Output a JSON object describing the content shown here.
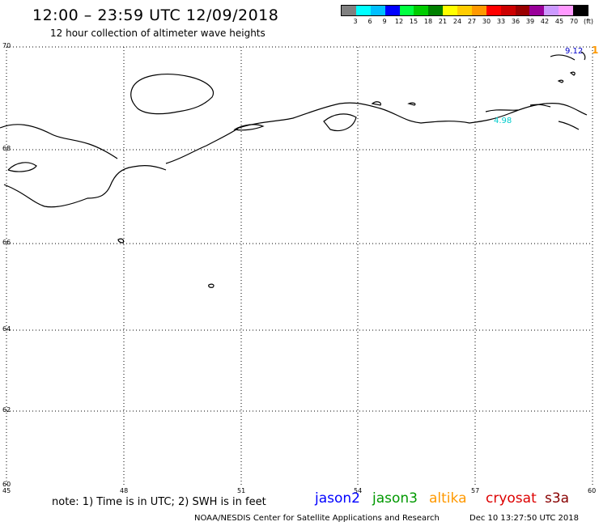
{
  "title": "12:00 – 23:59 UTC 12/09/2018",
  "subtitle": "12 hour collection of altimeter wave heights",
  "scale": {
    "colors": [
      "#808080",
      "#00ffff",
      "#00bfff",
      "#0000ff",
      "#00ff40",
      "#00cc00",
      "#008000",
      "#ffff00",
      "#ffcc00",
      "#ff9900",
      "#ff0000",
      "#cc0000",
      "#990000",
      "#990099",
      "#cc99ff",
      "#ff99ff",
      "#000000"
    ],
    "labels": [
      "3",
      "6",
      "9",
      "12",
      "15",
      "18",
      "21",
      "24",
      "27",
      "30",
      "33",
      "36",
      "39",
      "42",
      "45",
      "70",
      "(ft)"
    ]
  },
  "map": {
    "lat_labels": [
      "70",
      "68",
      "66",
      "64",
      "62",
      "60"
    ],
    "lon_labels": [
      "45",
      "48",
      "51",
      "54",
      "57",
      "60"
    ]
  },
  "readings": [
    {
      "text": "9.12",
      "color": "#0000cc"
    },
    {
      "text": "1",
      "color": "#ff9900"
    },
    {
      "text": "4.98",
      "color": "#00cccc"
    }
  ],
  "note": "note: 1) Time is in UTC; 2) SWH is in feet",
  "satellites": [
    {
      "name": "jason2",
      "color": "#0000ff"
    },
    {
      "name": "jason3",
      "color": "#009900"
    },
    {
      "name": "altika",
      "color": "#ff9900"
    },
    {
      "name": "cryosat",
      "color": "#dd0000"
    },
    {
      "name": "s3a",
      "color": "#880000"
    }
  ],
  "credit": "NOAA/NESDIS Center for Satellite Applications and Research",
  "timestamp": "Dec 10 13:27:50 UTC 2018"
}
